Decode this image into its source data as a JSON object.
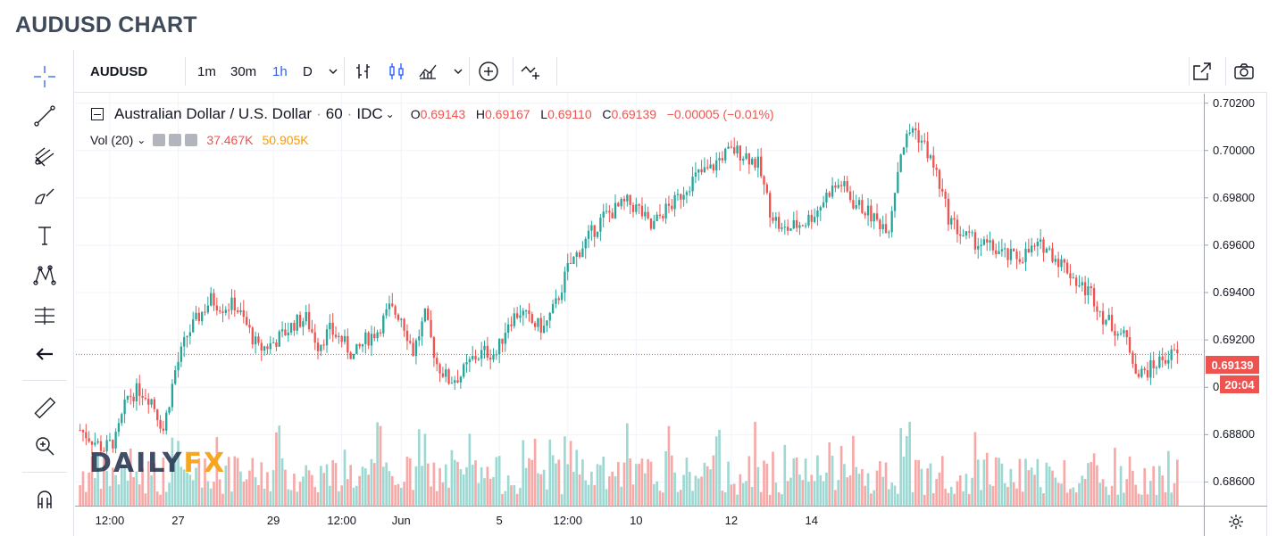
{
  "page_title": "AUDUSD CHART",
  "toolbar": {
    "symbol": "AUDUSD",
    "intervals": [
      "1m",
      "30m",
      "1h",
      "D"
    ],
    "active_interval": "1h"
  },
  "legend": {
    "name": "Australian Dollar / U.S. Dollar",
    "interval": "60",
    "source": "IDC",
    "o_key": "O",
    "o_val": "0.69143",
    "h_key": "H",
    "h_val": "0.69167",
    "l_key": "L",
    "l_val": "0.69110",
    "c_key": "C",
    "c_val": "0.69139",
    "change": "−0.00005 (−0.01%)",
    "vol_label": "Vol (20)",
    "vol_value": "37.467K",
    "vol_ma_value": "50.905K"
  },
  "logo": {
    "part1": "DAILY",
    "part2": "FX"
  },
  "colors": {
    "up": "#26a69a",
    "down": "#ef5350",
    "vol_up": "#9ed8d2",
    "vol_down": "#f7a9a7",
    "grid": "#f0f3fa",
    "price_line": "#ef5350",
    "logo_dark": "#1e2f4d",
    "logo_accent": "#f5a623",
    "vol_ma": "#ff9800"
  },
  "chart_data": {
    "type": "candlestick",
    "symbol": "AUDUSD",
    "ylim": [
      0.685,
      0.7024
    ],
    "y_ticks": [
      "0.70200",
      "0.70000",
      "0.69800",
      "0.69600",
      "0.69400",
      "0.69200",
      "0.69000",
      "0.68800",
      "0.68600"
    ],
    "y_tick_values": [
      0.702,
      0.7,
      0.698,
      0.696,
      0.694,
      0.692,
      0.69,
      0.688,
      0.686
    ],
    "x_ticks": [
      "12:00",
      "27",
      "29",
      "12:00",
      "Jun",
      "5",
      "12:00",
      "10",
      "12",
      "14"
    ],
    "x_tick_index": [
      10,
      33,
      65,
      88,
      108,
      141,
      164,
      187,
      219,
      246
    ],
    "last_price": "0.69139",
    "last_price_value": 0.69139,
    "countdown": "20:04",
    "close_path": [
      [
        0,
        0.6882
      ],
      [
        8,
        0.6874
      ],
      [
        12,
        0.6878
      ],
      [
        16,
        0.6896
      ],
      [
        20,
        0.6899
      ],
      [
        24,
        0.6895
      ],
      [
        28,
        0.6882
      ],
      [
        32,
        0.6907
      ],
      [
        36,
        0.6922
      ],
      [
        40,
        0.693
      ],
      [
        44,
        0.6937
      ],
      [
        48,
        0.6934
      ],
      [
        52,
        0.6935
      ],
      [
        56,
        0.6926
      ],
      [
        60,
        0.6916
      ],
      [
        64,
        0.6918
      ],
      [
        68,
        0.6922
      ],
      [
        72,
        0.6927
      ],
      [
        76,
        0.6929
      ],
      [
        80,
        0.6918
      ],
      [
        84,
        0.6924
      ],
      [
        88,
        0.692
      ],
      [
        92,
        0.6913
      ],
      [
        96,
        0.692
      ],
      [
        100,
        0.6924
      ],
      [
        104,
        0.6933
      ],
      [
        108,
        0.693
      ],
      [
        112,
        0.6915
      ],
      [
        116,
        0.693
      ],
      [
        120,
        0.691
      ],
      [
        124,
        0.6903
      ],
      [
        128,
        0.6905
      ],
      [
        132,
        0.6912
      ],
      [
        136,
        0.6915
      ],
      [
        140,
        0.6914
      ],
      [
        144,
        0.6928
      ],
      [
        148,
        0.6932
      ],
      [
        152,
        0.6927
      ],
      [
        156,
        0.6925
      ],
      [
        160,
        0.6935
      ],
      [
        164,
        0.695
      ],
      [
        168,
        0.6958
      ],
      [
        172,
        0.6965
      ],
      [
        176,
        0.6972
      ],
      [
        180,
        0.6975
      ],
      [
        184,
        0.6978
      ],
      [
        188,
        0.6975
      ],
      [
        192,
        0.6967
      ],
      [
        196,
        0.6974
      ],
      [
        200,
        0.6978
      ],
      [
        204,
        0.6985
      ],
      [
        208,
        0.699
      ],
      [
        212,
        0.6992
      ],
      [
        216,
        0.6998
      ],
      [
        220,
        0.7
      ],
      [
        224,
        0.6998
      ],
      [
        228,
        0.6994
      ],
      [
        232,
        0.6975
      ],
      [
        236,
        0.6966
      ],
      [
        240,
        0.6968
      ],
      [
        244,
        0.697
      ],
      [
        248,
        0.6975
      ],
      [
        252,
        0.6983
      ],
      [
        256,
        0.6986
      ],
      [
        260,
        0.6978
      ],
      [
        264,
        0.6975
      ],
      [
        268,
        0.697
      ],
      [
        272,
        0.6968
      ],
      [
        276,
        0.7
      ],
      [
        280,
        0.701
      ],
      [
        284,
        0.7002
      ],
      [
        288,
        0.699
      ],
      [
        292,
        0.6972
      ],
      [
        296,
        0.6965
      ],
      [
        300,
        0.6962
      ],
      [
        304,
        0.696
      ],
      [
        308,
        0.6958
      ],
      [
        312,
        0.6955
      ],
      [
        316,
        0.6955
      ],
      [
        320,
        0.6958
      ],
      [
        324,
        0.696
      ],
      [
        328,
        0.6955
      ],
      [
        332,
        0.695
      ],
      [
        336,
        0.6943
      ],
      [
        340,
        0.694
      ],
      [
        344,
        0.693
      ],
      [
        348,
        0.6925
      ],
      [
        352,
        0.692
      ],
      [
        356,
        0.6905
      ],
      [
        360,
        0.6908
      ],
      [
        364,
        0.6912
      ],
      [
        368,
        0.6914
      ]
    ]
  }
}
